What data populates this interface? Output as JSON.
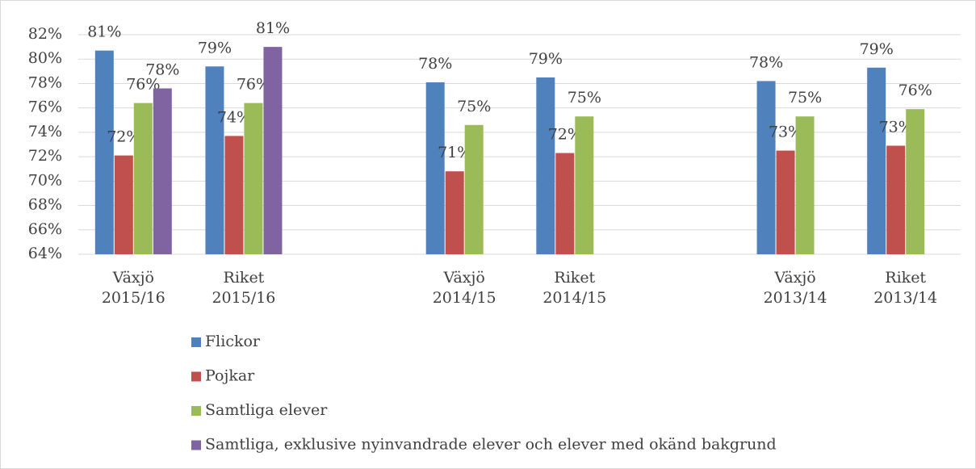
{
  "chart_data": {
    "type": "bar",
    "categories": [
      [
        "Växjö",
        "2015/16"
      ],
      [
        "Riket",
        "2015/16"
      ],
      null,
      [
        "Växjö",
        "2014/15"
      ],
      [
        "Riket",
        "2014/15"
      ],
      null,
      [
        "Växjö",
        "2013/14"
      ],
      [
        "Riket",
        "2013/14"
      ]
    ],
    "series": [
      {
        "name": "Flickor",
        "color": "#4f81bd",
        "values": [
          80.7,
          79.4,
          null,
          78.1,
          78.5,
          null,
          78.2,
          79.3
        ],
        "value_labels": [
          "81%",
          "79%",
          null,
          "78%",
          "79%",
          null,
          "78%",
          "79%"
        ]
      },
      {
        "name": "Pojkar",
        "color": "#c0504d",
        "values": [
          72.1,
          73.7,
          null,
          70.8,
          72.3,
          null,
          72.5,
          72.9
        ],
        "value_labels": [
          "72%",
          "74%",
          null,
          "71%",
          "72%",
          null,
          "73%",
          "73%"
        ]
      },
      {
        "name": "Samtliga elever",
        "color": "#9bbb59",
        "values": [
          76.4,
          76.4,
          null,
          74.6,
          75.3,
          null,
          75.3,
          75.9
        ],
        "value_labels": [
          "76%",
          "76%",
          null,
          "75%",
          "75%",
          null,
          "75%",
          "76%"
        ]
      },
      {
        "name": "Samtliga, exklusive nyinvandrade elever och elever med okänd bakgrund",
        "color": "#8064a2",
        "values": [
          77.6,
          81.0,
          null,
          null,
          null,
          null,
          null,
          null
        ],
        "value_labels": [
          "78%",
          "81%",
          null,
          null,
          null,
          null,
          null,
          null
        ]
      }
    ],
    "ylim": [
      64,
      82
    ],
    "yticks": [
      {
        "value": 64,
        "label": "64%"
      },
      {
        "value": 66,
        "label": "66%"
      },
      {
        "value": 68,
        "label": "68%"
      },
      {
        "value": 70,
        "label": "70%"
      },
      {
        "value": 72,
        "label": "72%"
      },
      {
        "value": 74,
        "label": "74%"
      },
      {
        "value": 76,
        "label": "76%"
      },
      {
        "value": 78,
        "label": "78%"
      },
      {
        "value": 80,
        "label": "80%"
      },
      {
        "value": 82,
        "label": "82%"
      }
    ],
    "grid": true,
    "legend": "bottom"
  }
}
